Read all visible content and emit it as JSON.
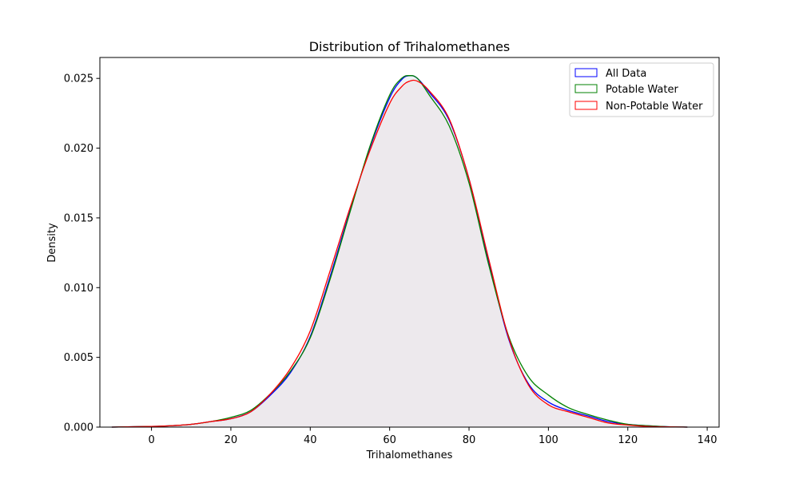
{
  "chart_data": {
    "type": "area",
    "title": "Distribution of Trihalomethanes",
    "xlabel": "Trihalomethanes",
    "ylabel": "Density",
    "xlim": [
      -13,
      143
    ],
    "ylim": [
      0,
      0.0265
    ],
    "xticks": [
      0,
      20,
      40,
      60,
      80,
      100,
      120,
      140
    ],
    "xtick_labels": [
      "0",
      "20",
      "40",
      "60",
      "80",
      "100",
      "120",
      "140"
    ],
    "yticks": [
      0,
      0.005,
      0.01,
      0.015,
      0.02,
      0.025
    ],
    "ytick_labels": [
      "0.000",
      "0.005",
      "0.010",
      "0.015",
      "0.020",
      "0.025"
    ],
    "grid": false,
    "legend_position": "top-right",
    "series": [
      {
        "name": "All Data",
        "color": "#0000ff",
        "fill": "#0000ff",
        "x": [
          -10,
          0,
          5,
          10,
          15,
          20,
          25,
          30,
          35,
          40,
          45,
          50,
          55,
          60,
          63,
          65,
          67,
          70,
          75,
          80,
          85,
          90,
          95,
          100,
          105,
          110,
          115,
          120,
          125,
          130,
          135
        ],
        "values": [
          0.0,
          5e-05,
          0.0001,
          0.0002,
          0.0004,
          0.0006,
          0.0011,
          0.0023,
          0.0039,
          0.0065,
          0.0108,
          0.0155,
          0.02,
          0.0236,
          0.0249,
          0.0252,
          0.025,
          0.024,
          0.022,
          0.0178,
          0.0118,
          0.0063,
          0.0031,
          0.0018,
          0.0012,
          0.0008,
          0.0004,
          0.0002,
          0.0001,
          3e-05,
          0.0
        ]
      },
      {
        "name": "Potable Water",
        "color": "#008000",
        "fill": "#008000",
        "x": [
          -10,
          0,
          5,
          10,
          15,
          20,
          25,
          30,
          35,
          40,
          45,
          50,
          55,
          60,
          63,
          65,
          67,
          70,
          75,
          80,
          85,
          90,
          95,
          100,
          105,
          110,
          115,
          120,
          125,
          130,
          135
        ],
        "values": [
          0.0,
          5e-05,
          0.0001,
          0.0002,
          0.0004,
          0.0007,
          0.0012,
          0.0024,
          0.004,
          0.0064,
          0.0106,
          0.0154,
          0.0201,
          0.0238,
          0.025,
          0.0252,
          0.025,
          0.0238,
          0.0216,
          0.0175,
          0.0116,
          0.0065,
          0.0036,
          0.0023,
          0.0014,
          0.0009,
          0.0005,
          0.0002,
          0.0001,
          3e-05,
          0.0
        ]
      },
      {
        "name": "Non-Potable Water",
        "color": "#ff0000",
        "fill": "#ff0000",
        "x": [
          -10,
          0,
          5,
          10,
          15,
          20,
          25,
          30,
          35,
          40,
          45,
          50,
          55,
          60,
          63,
          65,
          67,
          70,
          75,
          80,
          85,
          90,
          95,
          100,
          105,
          110,
          115,
          120,
          125,
          130,
          135
        ],
        "values": [
          0.0,
          5e-05,
          0.0001,
          0.0002,
          0.0004,
          0.0006,
          0.0011,
          0.0024,
          0.0042,
          0.0069,
          0.0112,
          0.0157,
          0.0198,
          0.0232,
          0.0244,
          0.0248,
          0.0248,
          0.0241,
          0.0221,
          0.0178,
          0.012,
          0.0064,
          0.003,
          0.0016,
          0.0011,
          0.0007,
          0.0003,
          0.00015,
          5e-05,
          2e-05,
          0.0
        ]
      }
    ]
  }
}
